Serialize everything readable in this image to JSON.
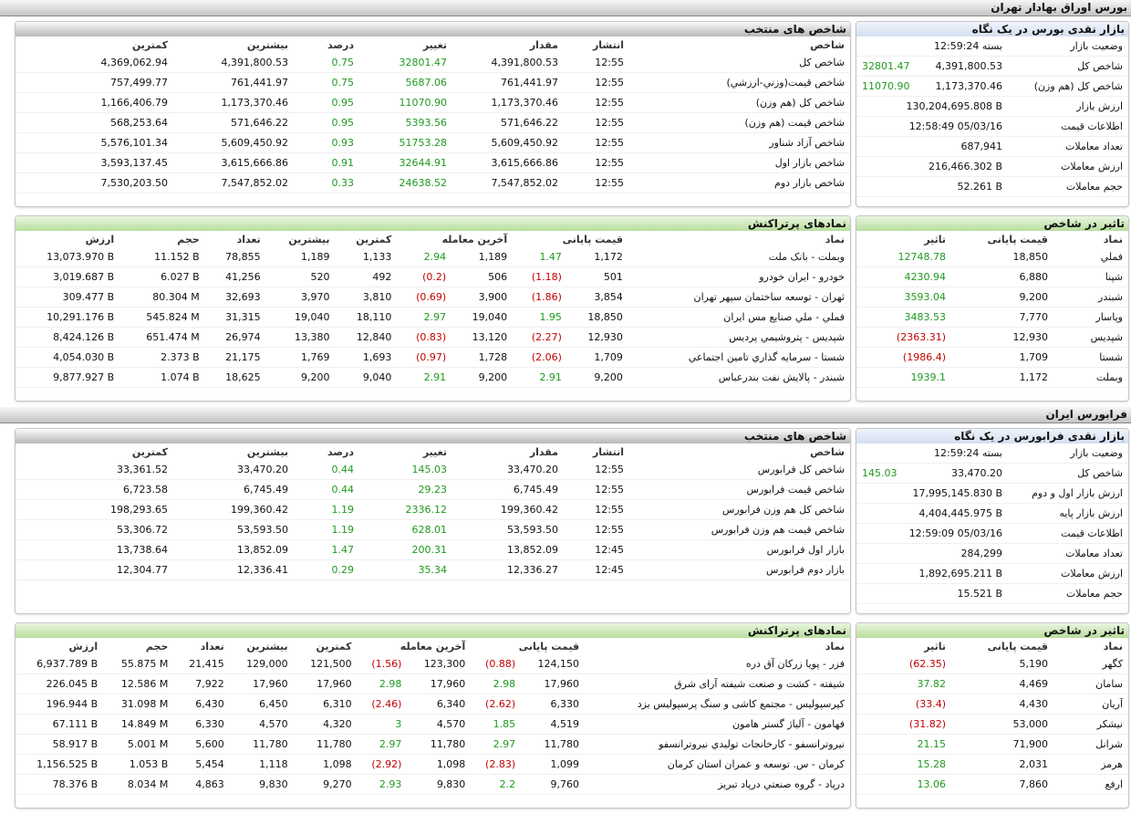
{
  "sections": [
    {
      "title": "بورس اوراق بهادار تهران",
      "summary": {
        "title": "بازار نقدی بورس در یک نگاه",
        "rows": [
          [
            "وضعیت بازار",
            "بسته 12:59:24"
          ],
          [
            "شاخص کل",
            "4,391,800.53",
            "32801.47"
          ],
          [
            "شاخص کل (هم وزن)",
            "1,173,370.46",
            "11070.90"
          ],
          [
            "ارزش بازار",
            "130,204,695.808 B"
          ],
          [
            "اطلاعات قیمت",
            "12:58:49 05/03/16"
          ],
          [
            "تعداد معاملات",
            "687,941"
          ],
          [
            "ارزش معاملات",
            "216,466.302 B"
          ],
          [
            "حجم معاملات",
            "52.261 B"
          ]
        ]
      },
      "indices": {
        "title": "شاخص های منتخب",
        "headers": [
          "شاخص",
          "انتشار",
          "مقدار",
          "تغییر",
          "درصد",
          "بیشترین",
          "کمترین"
        ],
        "rows": [
          [
            "شاخص کل",
            "12:55",
            "4,391,800.53",
            "32801.47",
            "0.75",
            "4,391,800.53",
            "4,369,062.94"
          ],
          [
            "شاخص قیمت(وزني-ارزشي)",
            "12:55",
            "761,441.97",
            "5687.06",
            "0.75",
            "761,441.97",
            "757,499.77"
          ],
          [
            "شاخص کل (هم وزن)",
            "12:55",
            "1,173,370.46",
            "11070.90",
            "0.95",
            "1,173,370.46",
            "1,166,406.79"
          ],
          [
            "شاخص قیمت (هم وزن)",
            "12:55",
            "571,646.22",
            "5393.56",
            "0.95",
            "571,646.22",
            "568,253.64"
          ],
          [
            "شاخص آزاد شناور",
            "12:55",
            "5,609,450.92",
            "51753.28",
            "0.93",
            "5,609,450.92",
            "5,576,101.34"
          ],
          [
            "شاخص بازار اول",
            "12:55",
            "3,615,666.86",
            "32644.91",
            "0.91",
            "3,615,666.86",
            "3,593,137.45"
          ],
          [
            "شاخص بازار دوم",
            "12:55",
            "7,547,852.02",
            "24638.52",
            "0.33",
            "7,547,852.02",
            "7,530,203.50"
          ]
        ]
      },
      "impact": {
        "title": "تاثیر در شاخص",
        "headers": [
          "نماد",
          "قیمت پایانی",
          "تاثیر"
        ],
        "rows": [
          [
            "فملي",
            "18,850",
            "12748.78"
          ],
          [
            "شپنا",
            "6,880",
            "4230.94"
          ],
          [
            "شبندر",
            "9,200",
            "3593.04"
          ],
          [
            "وپاسار",
            "7,770",
            "3483.53"
          ],
          [
            "شپدیس",
            "12,930",
            "(2363.31)"
          ],
          [
            "شستا",
            "1,709",
            "(1986.4)"
          ],
          [
            "وبملت",
            "1,172",
            "1939.1"
          ]
        ]
      },
      "active": {
        "title": "نمادهای پرتراکنش",
        "headers": [
          "نماد",
          "قیمت پایانی",
          "آخرین معامله",
          "کمترین",
          "بیشترین",
          "تعداد",
          "حجم",
          "ارزش"
        ],
        "rows": [
          [
            "وبملت - بانک ملت",
            "1,172",
            "1.47",
            "1,189",
            "2.94",
            "1,133",
            "1,189",
            "78,855",
            "11.152 B",
            "13,073.970 B"
          ],
          [
            "خودرو - ایران خودرو",
            "501",
            "(1.18)",
            "506",
            "(0.2)",
            "492",
            "520",
            "41,256",
            "6.027 B",
            "3,019.687 B"
          ],
          [
            "ثهران - توسعه ساختمان سپهر تهران",
            "3,854",
            "(1.86)",
            "3,900",
            "(0.69)",
            "3,810",
            "3,970",
            "32,693",
            "80.304 M",
            "309.477 B"
          ],
          [
            "فملي - ملي صنايع مس ايران",
            "18,850",
            "1.95",
            "19,040",
            "2.97",
            "18,110",
            "19,040",
            "31,315",
            "545.824 M",
            "10,291.176 B"
          ],
          [
            "شپدیس - پتروشیمي پردیس",
            "12,930",
            "(2.27)",
            "13,120",
            "(0.83)",
            "12,840",
            "13,380",
            "26,974",
            "651.474 M",
            "8,424.126 B"
          ],
          [
            "شستا - سرمايه گذاري تامين اجتماعي",
            "1,709",
            "(2.06)",
            "1,728",
            "(0.97)",
            "1,693",
            "1,769",
            "21,175",
            "2.373 B",
            "4,054.030 B"
          ],
          [
            "شبندر - پالايش نفت بندرعباس",
            "9,200",
            "2.91",
            "9,200",
            "2.91",
            "9,040",
            "9,200",
            "18,625",
            "1.074 B",
            "9,877.927 B"
          ]
        ]
      }
    },
    {
      "title": "فرابورس ایران",
      "summary": {
        "title": "بازار نقدی فرابورس در یک نگاه",
        "rows": [
          [
            "وضعیت بازار",
            "بسته 12:59:24"
          ],
          [
            "شاخص کل",
            "33,470.20",
            "145.03"
          ],
          [
            "ارزش بازار اول و دوم",
            "17,995,145.830 B"
          ],
          [
            "ارزش بازار پایه",
            "4,404,445.975 B"
          ],
          [
            "اطلاعات قیمت",
            "12:59:09 05/03/16"
          ],
          [
            "تعداد معاملات",
            "284,299"
          ],
          [
            "ارزش معاملات",
            "1,892,695.211 B"
          ],
          [
            "حجم معاملات",
            "15.521 B"
          ]
        ]
      },
      "indices": {
        "title": "شاخص های منتخب",
        "headers": [
          "شاخص",
          "انتشار",
          "مقدار",
          "تغییر",
          "درصد",
          "بیشترین",
          "کمترین"
        ],
        "rows": [
          [
            "شاخص کل فرابورس",
            "12:55",
            "33,470.20",
            "145.03",
            "0.44",
            "33,470.20",
            "33,361.52"
          ],
          [
            "شاخص قیمت فرابورس",
            "12:55",
            "6,745.49",
            "29.23",
            "0.44",
            "6,745.49",
            "6,723.58"
          ],
          [
            "شاخص کل هم وزن فرابورس",
            "12:55",
            "199,360.42",
            "2336.12",
            "1.19",
            "199,360.42",
            "198,293.65"
          ],
          [
            "شاخص قیمت هم وزن فرابورس",
            "12:55",
            "53,593.50",
            "628.01",
            "1.19",
            "53,593.50",
            "53,306.72"
          ],
          [
            "بازار اول فرابورس",
            "12:45",
            "13,852.09",
            "200.31",
            "1.47",
            "13,852.09",
            "13,738.64"
          ],
          [
            "بازار دوم فرابورس",
            "12:45",
            "12,336.27",
            "35.34",
            "0.29",
            "12,336.41",
            "12,304.77"
          ]
        ]
      },
      "impact": {
        "title": "تاثیر در شاخص",
        "headers": [
          "نماد",
          "قیمت پایانی",
          "تاثیر"
        ],
        "rows": [
          [
            "كگهر",
            "5,190",
            "(62.35)"
          ],
          [
            "سامان",
            "4,469",
            "37.82"
          ],
          [
            "آریان",
            "4,430",
            "(33.4)"
          ],
          [
            "نیشکر",
            "53,000",
            "(31.82)"
          ],
          [
            "شرانل",
            "71,900",
            "21.15"
          ],
          [
            "هرمز",
            "2,031",
            "15.28"
          ],
          [
            "ارفع",
            "7,860",
            "13.06"
          ]
        ]
      },
      "active": {
        "title": "نمادهای پرتراکنش",
        "headers": [
          "نماد",
          "قیمت پایانی",
          "آخرین معامله",
          "کمترین",
          "بیشترین",
          "تعداد",
          "حجم",
          "ارزش"
        ],
        "rows": [
          [
            "فزر - پويا زركان آق دره",
            "124,150",
            "(0.88)",
            "123,300",
            "(1.56)",
            "121,500",
            "129,000",
            "21,415",
            "55.875 M",
            "6,937.789 B"
          ],
          [
            "شیفته - کشت و صنعت شیفته آرای شرق",
            "17,960",
            "2.98",
            "17,960",
            "2.98",
            "17,960",
            "17,960",
            "7,922",
            "12.586 M",
            "226.045 B"
          ],
          [
            "کپرسپولیس - مجتمع کاشی و سنگ پرسپولیس یزد",
            "6,330",
            "(2.62)",
            "6,340",
            "(2.46)",
            "6,310",
            "6,450",
            "6,430",
            "31.098 M",
            "196.944 B"
          ],
          [
            "فهامون - آلیاژ گستر هامون",
            "4,519",
            "1.85",
            "4,570",
            "3",
            "4,320",
            "4,570",
            "6,330",
            "14.849 M",
            "67.111 B"
          ],
          [
            "نیروترانسفو - کارخانجات تولیدي نیروترانسفو",
            "11,780",
            "2.97",
            "11,780",
            "2.97",
            "11,780",
            "11,780",
            "5,600",
            "5.001 M",
            "58.917 B"
          ],
          [
            "کرمان - س. توسعه و عمران استان کرمان",
            "1,099",
            "(2.83)",
            "1,098",
            "(2.92)",
            "1,098",
            "1,118",
            "5,454",
            "1.053 B",
            "1,156.525 B"
          ],
          [
            "درپاد - گروه صنعتي درپاد تبریز",
            "9,760",
            "2.2",
            "9,830",
            "2.93",
            "9,270",
            "9,830",
            "4,863",
            "8.034 M",
            "78.376 B"
          ]
        ]
      }
    }
  ]
}
